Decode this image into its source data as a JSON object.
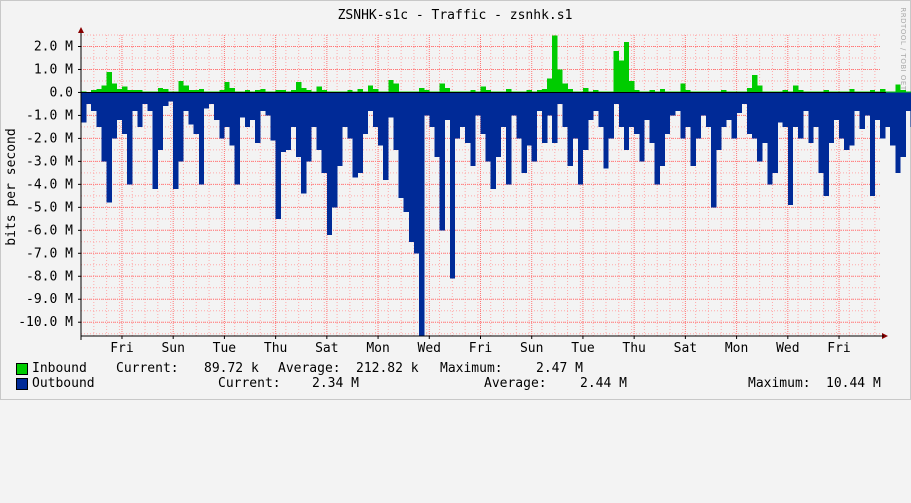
{
  "title": "ZSNHK-s1c - Traffic - zsnhk.s1",
  "watermark": "RRDTOOL / TOBI OETIKER",
  "colors": {
    "inbound": "#00cc00",
    "outbound": "#002a97",
    "grid": "#ffaaaa",
    "major_grid": "#ff7777",
    "axis": "#000000",
    "arrow": "#880000"
  },
  "chart_data": {
    "type": "area",
    "title": "ZSNHK-s1c - Traffic - zsnhk.s1",
    "ylabel": "bits per second",
    "xlabel": "",
    "ylim": [
      -10.6,
      2.5
    ],
    "y_unit_scale": "M = 1,000,000 bits per second",
    "y_ticks": [
      2.0,
      1.0,
      0.0,
      -1.0,
      -2.0,
      -3.0,
      -4.0,
      -5.0,
      -6.0,
      -7.0,
      -8.0,
      -9.0,
      -10.0
    ],
    "y_tick_labels": [
      "2.0 M",
      "1.0 M",
      "0.0",
      "-1.0 M",
      "-2.0 M",
      "-3.0 M",
      "-4.0 M",
      "-5.0 M",
      "-6.0 M",
      "-7.0 M",
      "-8.0 M",
      "-9.0 M",
      "-10.0 M"
    ],
    "x_range_days": [
      0,
      15.6
    ],
    "x_tick_labels": [
      "Fri",
      "Sun",
      "Tue",
      "Thu",
      "Sat",
      "Mon",
      "Wed",
      "Fri",
      "Sun",
      "Tue",
      "Thu",
      "Sat",
      "Mon",
      "Wed",
      "Fri"
    ],
    "x_tick_positions_days": [
      0.8,
      1.8,
      2.8,
      3.8,
      4.8,
      5.8,
      6.8,
      7.8,
      8.8,
      9.8,
      10.8,
      11.8,
      12.8,
      13.8,
      14.8
    ],
    "grid": true,
    "series": [
      {
        "name": "Inbound",
        "color": "#00cc00",
        "x_step_days": 0.1,
        "values_mbps": [
          0.05,
          0.03,
          0.1,
          0.15,
          0.3,
          0.9,
          0.4,
          0.15,
          0.25,
          0.1,
          0.1,
          0.1,
          0.05,
          0.05,
          0.05,
          0.2,
          0.15,
          0.05,
          0.05,
          0.5,
          0.3,
          0.1,
          0.1,
          0.15,
          0.05,
          0.05,
          0.05,
          0.1,
          0.45,
          0.2,
          0.05,
          0.05,
          0.1,
          0.05,
          0.1,
          0.15,
          0.05,
          0.05,
          0.1,
          0.1,
          0.05,
          0.1,
          0.45,
          0.2,
          0.1,
          0.05,
          0.25,
          0.1,
          0.05,
          0.05,
          0.05,
          0.05,
          0.1,
          0.05,
          0.15,
          0.05,
          0.3,
          0.15,
          0.05,
          0.05,
          0.55,
          0.4,
          0.05,
          0.05,
          0.05,
          0.05,
          0.2,
          0.1,
          0.05,
          0.05,
          0.4,
          0.2,
          0.05,
          0.05,
          0.05,
          0.05,
          0.1,
          0.05,
          0.25,
          0.1,
          0.05,
          0.05,
          0.05,
          0.15,
          0.05,
          0.05,
          0.05,
          0.1,
          0.05,
          0.1,
          0.15,
          0.6,
          2.47,
          1.0,
          0.4,
          0.15,
          0.05,
          0.05,
          0.2,
          0.05,
          0.1,
          0.05,
          0.05,
          0.05,
          1.8,
          1.4,
          2.2,
          0.5,
          0.1,
          0.05,
          0.05,
          0.1,
          0.05,
          0.15,
          0.05,
          0.05,
          0.05,
          0.4,
          0.1,
          0.05,
          0.05,
          0.05,
          0.05,
          0.05,
          0.05,
          0.1,
          0.05,
          0.05,
          0.05,
          0.05,
          0.2,
          0.75,
          0.3,
          0.05,
          0.05,
          0.05,
          0.05,
          0.1,
          0.05,
          0.3,
          0.1,
          0.05,
          0.05,
          0.05,
          0.05,
          0.1,
          0.05,
          0.05,
          0.05,
          0.05,
          0.15,
          0.05,
          0.05,
          0.05,
          0.1,
          0.05,
          0.15,
          0.05,
          0.05,
          0.35,
          0.1,
          0.05,
          0.05,
          0.05
        ]
      },
      {
        "name": "Outbound",
        "color": "#002a97",
        "x_step_days": 0.1,
        "values_mbps": [
          -1.3,
          -0.5,
          -0.8,
          -1.5,
          -3.0,
          -4.8,
          -2.0,
          -1.2,
          -1.8,
          -4.0,
          -0.8,
          -1.5,
          -0.5,
          -0.8,
          -4.2,
          -2.5,
          -0.6,
          -0.4,
          -4.2,
          -3.0,
          -0.8,
          -1.4,
          -1.8,
          -4.0,
          -0.7,
          -0.5,
          -1.2,
          -2.0,
          -1.5,
          -2.3,
          -4.0,
          -1.1,
          -1.5,
          -1.2,
          -2.2,
          -0.8,
          -1.0,
          -2.1,
          -5.5,
          -2.6,
          -2.5,
          -1.5,
          -2.8,
          -4.4,
          -3.0,
          -1.5,
          -2.5,
          -3.5,
          -6.2,
          -5.0,
          -3.2,
          -1.5,
          -2.0,
          -3.7,
          -3.5,
          -1.8,
          -0.8,
          -1.5,
          -2.3,
          -3.8,
          -1.1,
          -2.5,
          -4.6,
          -5.2,
          -6.5,
          -7.0,
          -10.6,
          -1.0,
          -1.5,
          -2.8,
          -6.0,
          -1.2,
          -8.1,
          -2.0,
          -1.5,
          -2.2,
          -3.2,
          -1.0,
          -1.8,
          -3.0,
          -4.2,
          -2.8,
          -1.5,
          -4.0,
          -1.0,
          -2.0,
          -3.5,
          -2.3,
          -3.0,
          -0.8,
          -2.2,
          -1.0,
          -2.2,
          -0.5,
          -1.5,
          -3.2,
          -2.0,
          -4.0,
          -2.5,
          -1.2,
          -0.8,
          -1.5,
          -3.3,
          -2.0,
          -0.5,
          -1.5,
          -2.5,
          -1.5,
          -1.8,
          -3.0,
          -1.2,
          -2.2,
          -4.0,
          -3.2,
          -1.8,
          -1.0,
          -0.8,
          -2.0,
          -1.5,
          -3.2,
          -2.0,
          -1.0,
          -1.5,
          -5.0,
          -2.5,
          -1.5,
          -1.2,
          -2.0,
          -0.9,
          -0.5,
          -1.8,
          -2.0,
          -3.0,
          -2.2,
          -4.0,
          -3.5,
          -1.3,
          -1.5,
          -4.9,
          -1.5,
          -2.0,
          -0.8,
          -2.2,
          -1.5,
          -3.5,
          -4.5,
          -2.2,
          -1.2,
          -2.0,
          -2.5,
          -2.3,
          -0.8,
          -1.6,
          -1.0,
          -4.5,
          -1.2,
          -2.0,
          -1.5,
          -2.3,
          -3.5,
          -2.8,
          -0.8,
          -1.5,
          -2.2,
          -2.5,
          -5.3,
          -2.8,
          -1.8,
          -4.0,
          -2.2
        ]
      }
    ]
  },
  "legend": {
    "inbound": {
      "name": "Inbound",
      "current_label": "Current:",
      "current_value": "89.72 k",
      "average_label": "Average:",
      "average_value": "212.82 k",
      "maximum_label": "Maximum:",
      "maximum_value": "2.47 M"
    },
    "outbound": {
      "name": "Outbound",
      "current_label": "Current:",
      "current_value": "2.34 M",
      "average_label": "Average:",
      "average_value": "2.44 M",
      "maximum_label": "Maximum:",
      "maximum_value": "10.44 M"
    }
  }
}
